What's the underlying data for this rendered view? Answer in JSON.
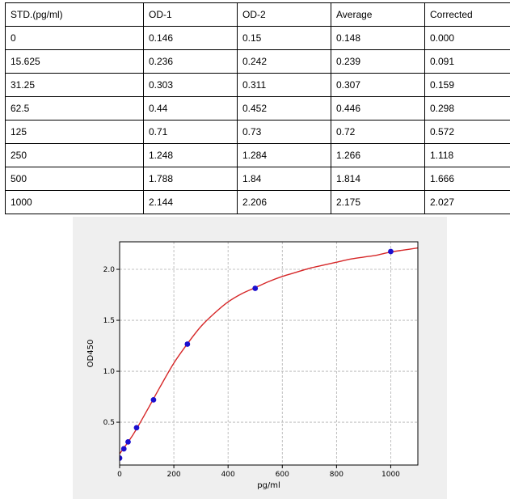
{
  "table": {
    "headers": [
      "STD.(pg/ml)",
      "OD-1",
      "OD-2",
      "Average",
      "Corrected"
    ],
    "rows": [
      [
        "0",
        "0.146",
        "0.15",
        "0.148",
        "0.000"
      ],
      [
        "15.625",
        "0.236",
        "0.242",
        "0.239",
        "0.091"
      ],
      [
        "31.25",
        "0.303",
        "0.311",
        "0.307",
        "0.159"
      ],
      [
        "62.5",
        "0.44",
        "0.452",
        "0.446",
        "0.298"
      ],
      [
        "125",
        "0.71",
        "0.73",
        "0.72",
        "0.572"
      ],
      [
        "250",
        "1.248",
        "1.284",
        "1.266",
        "1.118"
      ],
      [
        "500",
        "1.788",
        "1.84",
        "1.814",
        "1.666"
      ],
      [
        "1000",
        "2.144",
        "2.206",
        "2.175",
        "2.027"
      ]
    ]
  },
  "chart_data": {
    "type": "scatter",
    "xlabel": "pg/ml",
    "ylabel": "OD450",
    "xlim": [
      0,
      1100
    ],
    "ylim": [
      0.08,
      2.27
    ],
    "xticks": [
      0,
      200,
      400,
      600,
      800,
      1000
    ],
    "yticks": [
      0.5,
      1.0,
      1.5,
      2.0
    ],
    "ytick_labels": [
      "0.5",
      "1.0",
      "1.5",
      "2.0"
    ],
    "grid": true,
    "series": [
      {
        "kind": "points",
        "color": "#1c0fcf",
        "x": [
          0,
          15.625,
          31.25,
          62.5,
          125,
          250,
          500,
          1000
        ],
        "y": [
          0.148,
          0.239,
          0.307,
          0.446,
          0.72,
          1.266,
          1.814,
          2.175
        ]
      },
      {
        "kind": "fit-curve",
        "color": "#d62728",
        "x": [
          0,
          50,
          100,
          150,
          200,
          250,
          300,
          350,
          400,
          450,
          500,
          550,
          600,
          650,
          700,
          750,
          800,
          850,
          900,
          950,
          1000,
          1050,
          1100
        ],
        "y": [
          0.19,
          0.38,
          0.61,
          0.85,
          1.08,
          1.27,
          1.44,
          1.57,
          1.68,
          1.76,
          1.82,
          1.88,
          1.93,
          1.97,
          2.01,
          2.04,
          2.07,
          2.1,
          2.12,
          2.14,
          2.17,
          2.19,
          2.21
        ]
      }
    ]
  }
}
